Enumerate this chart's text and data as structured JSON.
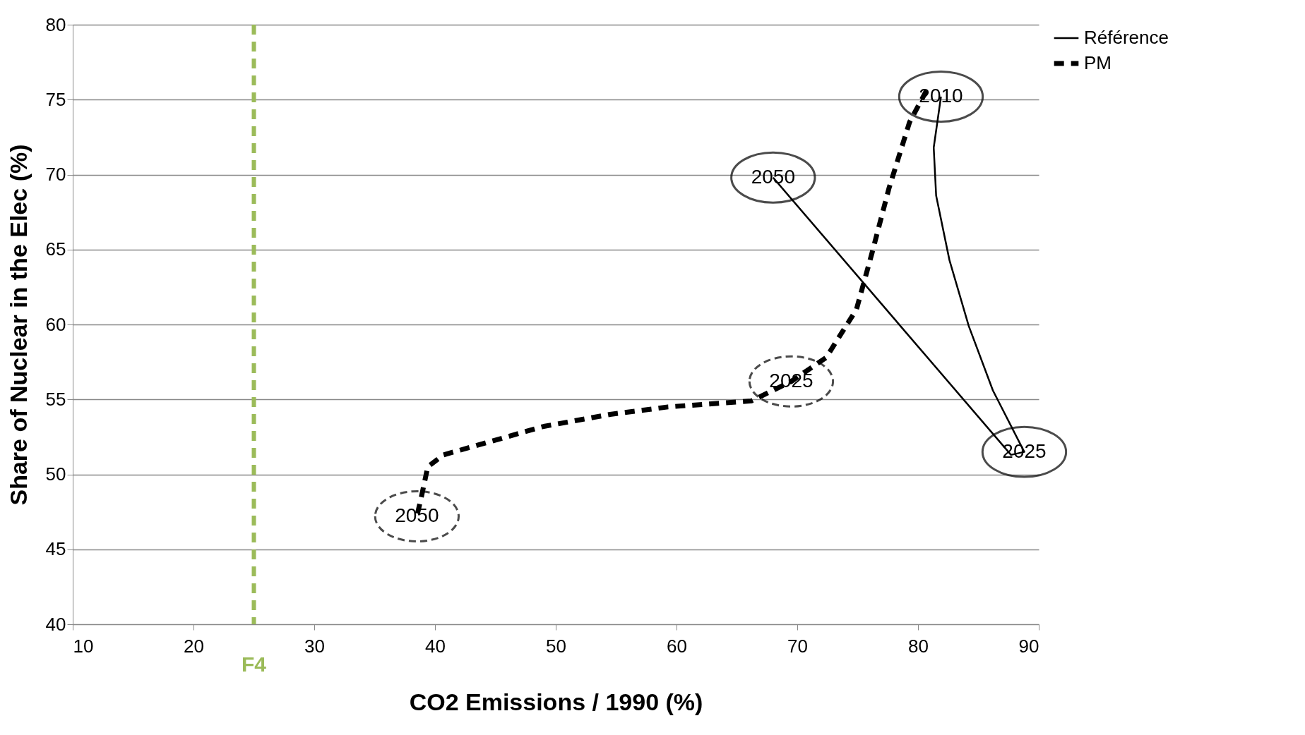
{
  "chart_data": {
    "type": "line",
    "xlabel": "CO2 Emissions / 1990 (%)",
    "ylabel": "Share of Nuclear in the Elec (%)",
    "xlim": [
      10,
      90
    ],
    "xticks": [
      10,
      20,
      30,
      40,
      50,
      60,
      70,
      80,
      90
    ],
    "ylim": [
      40,
      80
    ],
    "yticks": [
      40,
      45,
      50,
      55,
      60,
      65,
      70,
      75,
      80
    ],
    "grid": "y",
    "legend": "right",
    "marker": "none",
    "series": [
      {
        "name": "Référence",
        "color": "#000000",
        "line_style": "solid",
        "x": [
          81.9,
          81.3,
          81.5,
          82.6,
          84.2,
          86.2,
          88.8,
          87.7,
          68.0
        ],
        "values": [
          75.2,
          71.8,
          68.6,
          64.3,
          59.9,
          55.6,
          51.5,
          51.3,
          69.8
        ]
      },
      {
        "name": "PM",
        "color": "#000000",
        "line_style": "dashed",
        "x": [
          80.7,
          79.3,
          77.6,
          76.2,
          74.9,
          72.4,
          69.5,
          66.2,
          59.3,
          54.5,
          49.0,
          44.2,
          40.7,
          39.4,
          38.9,
          38.5
        ],
        "values": [
          75.6,
          73.5,
          69.1,
          64.8,
          61.0,
          57.8,
          56.2,
          54.9,
          54.5,
          54.0,
          53.2,
          52.1,
          51.3,
          50.5,
          48.6,
          47.2
        ]
      }
    ],
    "ref_lines": [
      {
        "axis": "x",
        "value": 25,
        "label": "F4",
        "color": "#9bbb59",
        "line_style": "dashed"
      }
    ],
    "annotations": [
      {
        "text": "2010",
        "x": 81.9,
        "y": 75.2
      },
      {
        "text": "2025",
        "x": 88.8,
        "y": 51.5
      },
      {
        "text": "2050",
        "x": 68.0,
        "y": 69.8
      },
      {
        "text": "2025",
        "x": 69.5,
        "y": 56.2
      },
      {
        "text": "2050",
        "x": 38.5,
        "y": 47.2
      }
    ]
  }
}
